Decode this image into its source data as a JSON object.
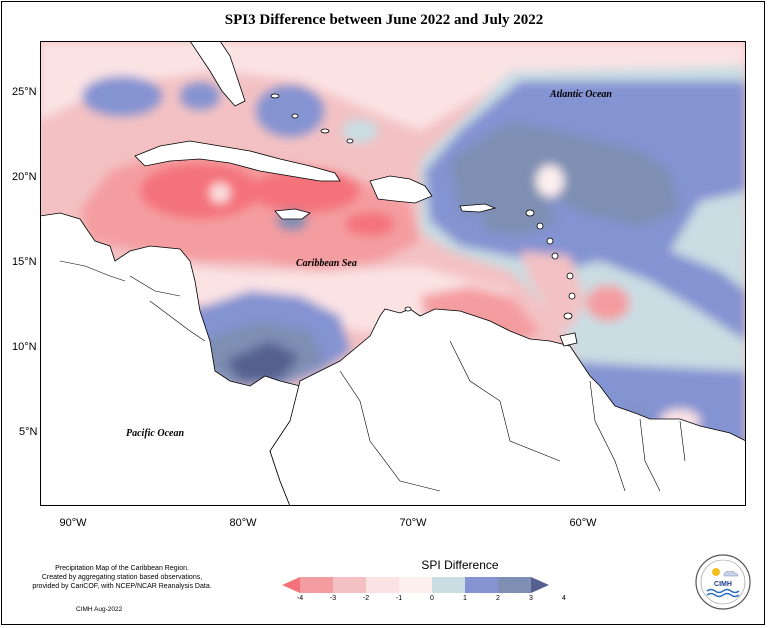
{
  "title": "SPI3 Difference between June 2022 and July 2022",
  "map_labels": {
    "atlantic": "Atlantic Ocean",
    "caribbean": "Caribbean Sea",
    "pacific": "Pacific Ocean"
  },
  "lat_ticks": [
    "25°N",
    "20°N",
    "15°N",
    "10°N",
    "5°N"
  ],
  "lon_ticks": [
    "90°W",
    "80°W",
    "70°W",
    "60°W"
  ],
  "legend": {
    "title": "SPI Difference",
    "ticks": [
      "-4",
      "-3",
      "-2",
      "-1",
      "0",
      "1",
      "2",
      "3",
      "4"
    ],
    "colors": [
      "#f4727a",
      "#f49da0",
      "#f3c1c3",
      "#fbe3e4",
      "#fdf0ef",
      "#c9dde3",
      "#8493d2",
      "#7e8fb3",
      "#56608f"
    ]
  },
  "footer": {
    "note_line1": "Precipitation Map of the Caribbean Region.",
    "note_line2": "Created by aggregating station based observations,",
    "note_line3": "provided by CariCOF, with NCEP/NCAR Reanalysis Data.",
    "credit": "CIMH Aug-2022"
  },
  "logo_text": "CIMH"
}
